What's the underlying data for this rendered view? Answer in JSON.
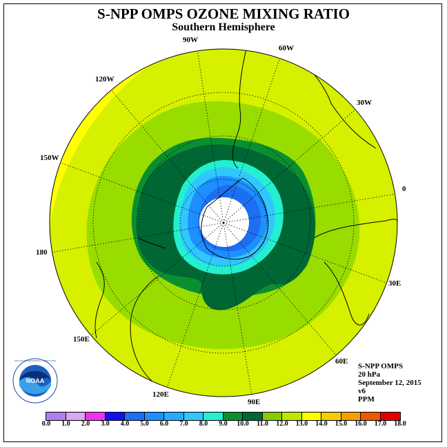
{
  "title": "S-NPP OMPS OZONE MIXING RATIO",
  "subtitle": "Southern Hemisphere",
  "longitude_labels": {
    "lon_90W": "90W",
    "lon_60W": "60W",
    "lon_30W": "30W",
    "lon_0": "0",
    "lon_30E": "30E",
    "lon_60E": "60E",
    "lon_90E": "90E",
    "lon_120E": "120E",
    "lon_150E": "150E",
    "lon_180": "180",
    "lon_150W": "150W",
    "lon_120W": "120W"
  },
  "info": {
    "instrument": "S-NPP OMPS",
    "level": "20 hPa",
    "date": "September 12, 2015",
    "version": "v6",
    "units": "PPM"
  },
  "logo": {
    "text": "NOAA",
    "ring_text": "NATIONAL OCEANIC AND ATMOSPHERIC ADMINISTRATION · U.S. DEPARTMENT OF COMMERCE"
  },
  "colorbar": {
    "ticks": [
      "0.0",
      "1.0",
      "2.0",
      "3.0",
      "4.0",
      "5.0",
      "6.0",
      "7.0",
      "8.0",
      "9.0",
      "10.0",
      "11.0",
      "12.0",
      "13.0",
      "14.0",
      "15.0",
      "16.0",
      "17.0",
      "18.0"
    ],
    "colors": [
      "#b07ef0",
      "#d9a6f0",
      "#ee33ee",
      "#1111ee",
      "#1c6ff0",
      "#1e8fff",
      "#24aaff",
      "#30c7ff",
      "#22f0d0",
      "#0a8f30",
      "#006633",
      "#88cc00",
      "#bbe800",
      "#ffff00",
      "#f8cc00",
      "#f5a000",
      "#f05800",
      "#e00000",
      "#8a5a3c"
    ]
  },
  "map_colors": {
    "background_yellow": "#ffff00",
    "yellow_green": "#d6f000",
    "light_green": "#99dd00",
    "green": "#0a8f30",
    "dark_green": "#006633",
    "cyan": "#22f0d0",
    "light_blue": "#30c7ff",
    "blue": "#1e8fff",
    "dark_blue": "#1c6ff0",
    "pole_white": "#ffffff"
  }
}
